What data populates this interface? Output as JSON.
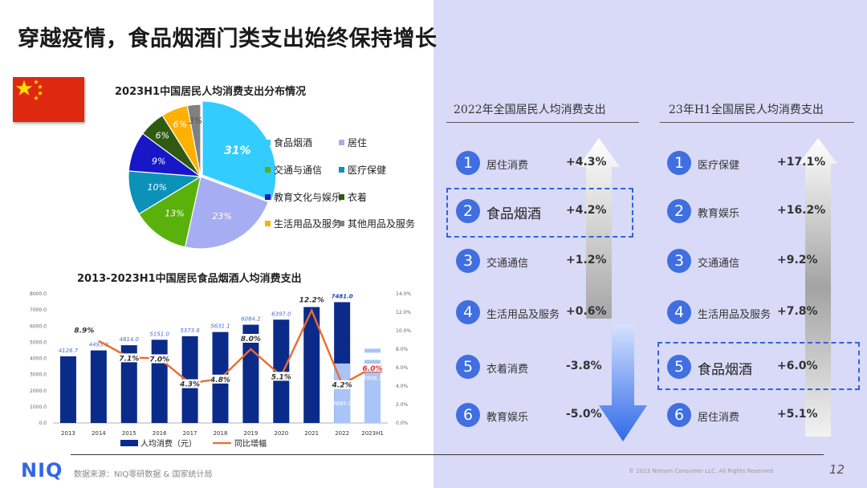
{
  "header": {
    "title": "穿越疫情，食品烟酒门类支出始终保持增长"
  },
  "pie_chart": {
    "title": "2023H1中国居民人均消费支出分布情况",
    "legend": [
      {
        "label": "食品烟酒",
        "color": "#33ccff"
      },
      {
        "label": "居住",
        "color": "#a7adf2"
      },
      {
        "label": "交通与通信",
        "color": "#5ab10c"
      },
      {
        "label": "医疗保健",
        "color": "#0a92b8"
      },
      {
        "label": "教育文化与娱乐",
        "color": "#1717c8"
      },
      {
        "label": "衣着",
        "color": "#2e5a12"
      },
      {
        "label": "生活用品及服务",
        "color": "#ffb000"
      },
      {
        "label": "其他用品及服务",
        "color": "#808080"
      }
    ]
  },
  "bar_chart": {
    "title": "2013-2023H1中国居民食品烟酒人均消费支出"
  },
  "chart_data": [
    {
      "type": "pie",
      "title": "2023H1中国居民人均消费支出分布情况",
      "labels": [
        "食品烟酒",
        "居住",
        "交通与通信",
        "医疗保健",
        "教育文化与娱乐",
        "衣着",
        "生活用品及服务",
        "其他用品及服务"
      ],
      "values": [
        31,
        23,
        13,
        10,
        9,
        6,
        6,
        3
      ],
      "value_labels": [
        "31%",
        "23%",
        "13%",
        "10%",
        "9%",
        "6%",
        "6%",
        "3%"
      ],
      "colors": [
        "#33ccff",
        "#a7adf2",
        "#5ab10c",
        "#0a92b8",
        "#1717c8",
        "#2e5a12",
        "#ffb000",
        "#808080"
      ],
      "legend_position": "right"
    },
    {
      "type": "bar",
      "title": "2013-2023H1中国居民食品烟酒人均消费支出",
      "categories": [
        "2013",
        "2014",
        "2015",
        "2016",
        "2017",
        "2018",
        "2019",
        "2020",
        "2021",
        "2022",
        "2023H1"
      ],
      "series": [
        {
          "name": "人均消费（元）",
          "type": "bar",
          "values": [
            4126.7,
            4493.9,
            4814.0,
            5151.0,
            5373.6,
            5631.1,
            6084.2,
            6397.0,
            7178.0,
            7481.0,
            3906.1
          ],
          "value_labels": [
            "4126.7",
            "4493.9",
            "4814.0",
            "5151.0",
            "5373.6",
            "5631.1",
            "6084.2",
            "6397.0",
            "7178.0",
            "7481.0",
            "3906.1"
          ],
          "highlight_overlay": [
            null,
            null,
            null,
            null,
            null,
            null,
            null,
            null,
            null,
            3685.0,
            null
          ],
          "highlight_overlay_label": "3685.0"
        },
        {
          "name": "同比增幅",
          "type": "line",
          "values": [
            null,
            8.9,
            7.1,
            7.0,
            4.3,
            4.8,
            8.0,
            5.1,
            12.2,
            4.2,
            6.0
          ],
          "value_labels": [
            "",
            "8.9%",
            "7.1%",
            "7.0%",
            "4.3%",
            "4.8%",
            "8.0%",
            "5.1%",
            "12.2%",
            "4.2%",
            "6.0%"
          ]
        }
      ],
      "y_left": {
        "ticks": [
          "0.0",
          "1000.0",
          "2000.0",
          "3000.0",
          "4000.0",
          "5000.0",
          "6000.0",
          "7000.0",
          "8000.0"
        ],
        "range": [
          0,
          8000
        ]
      },
      "y_right": {
        "ticks": [
          "0.0%",
          "2.0%",
          "4.0%",
          "6.0%",
          "8.0%",
          "10.0%",
          "12.0%",
          "14.0%"
        ],
        "range": [
          0,
          14
        ]
      },
      "legend_position": "bottom",
      "colors": {
        "bar": "#0b2b8a",
        "bar_light": "#a9c4f7",
        "line": "#ef6a2a"
      }
    }
  ],
  "rank_2022": {
    "title": "2022年全国居民人均消费支出",
    "items": [
      {
        "rank": "1",
        "label": "居住消费",
        "value": "+4.3%"
      },
      {
        "rank": "2",
        "label": "食品烟酒",
        "value": "+4.2%",
        "highlight": true
      },
      {
        "rank": "3",
        "label": "交通通信",
        "value": "+1.2%"
      },
      {
        "rank": "4",
        "label": "生活用品及服务",
        "value": "+0.6%"
      },
      {
        "rank": "5",
        "label": "衣着消费",
        "value": "-3.8%"
      },
      {
        "rank": "6",
        "label": "教育娱乐",
        "value": "-5.0%"
      }
    ]
  },
  "rank_2023": {
    "title": "23年H1全国居民人均消费支出",
    "items": [
      {
        "rank": "1",
        "label": "医疗保健",
        "value": "+17.1%"
      },
      {
        "rank": "2",
        "label": "教育娱乐",
        "value": "+16.2%"
      },
      {
        "rank": "3",
        "label": "交通通信",
        "value": "+9.2%"
      },
      {
        "rank": "4",
        "label": "生活用品及服务",
        "value": "+7.8%"
      },
      {
        "rank": "5",
        "label": "食品烟酒",
        "value": "+6.0%",
        "highlight": true
      },
      {
        "rank": "6",
        "label": "居住消费",
        "value": "+5.1%"
      }
    ]
  },
  "footer": {
    "logo": "NIQ",
    "source": "数据来源：NIQ零研数据 & 国家统计局",
    "copyright": "© 2023 Nielsen Consumer LLC. All Rights Reserved",
    "page": "12"
  },
  "flag": {
    "color": "#de2910",
    "star_color": "#ffde00"
  }
}
